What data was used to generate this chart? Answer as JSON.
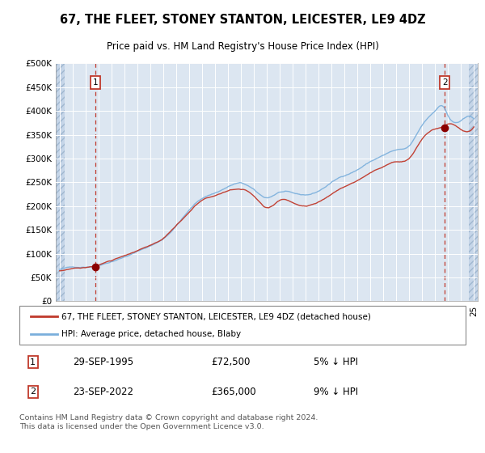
{
  "title": "67, THE FLEET, STONEY STANTON, LEICESTER, LE9 4DZ",
  "subtitle": "Price paid vs. HM Land Registry's House Price Index (HPI)",
  "legend_line1": "67, THE FLEET, STONEY STANTON, LEICESTER, LE9 4DZ (detached house)",
  "legend_line2": "HPI: Average price, detached house, Blaby",
  "annotation1_label": "1",
  "annotation1_date": "29-SEP-1995",
  "annotation1_price": "£72,500",
  "annotation1_hpi": "5% ↓ HPI",
  "annotation1_year": 1995.75,
  "annotation1_value": 72500,
  "annotation2_label": "2",
  "annotation2_date": "23-SEP-2022",
  "annotation2_price": "£365,000",
  "annotation2_hpi": "9% ↓ HPI",
  "annotation2_year": 2022.75,
  "annotation2_value": 365000,
  "footer": "Contains HM Land Registry data © Crown copyright and database right 2024.\nThis data is licensed under the Open Government Licence v3.0.",
  "ylim": [
    0,
    500000
  ],
  "yticks": [
    0,
    50000,
    100000,
    150000,
    200000,
    250000,
    300000,
    350000,
    400000,
    450000,
    500000
  ],
  "xlim_left": 1992.7,
  "xlim_right": 2025.3,
  "plot_bg_color": "#dce6f1",
  "hatch_color": "#c5d5e8",
  "red_color": "#c0392b",
  "blue_color": "#7aafdc",
  "marker_color": "#8b0000"
}
